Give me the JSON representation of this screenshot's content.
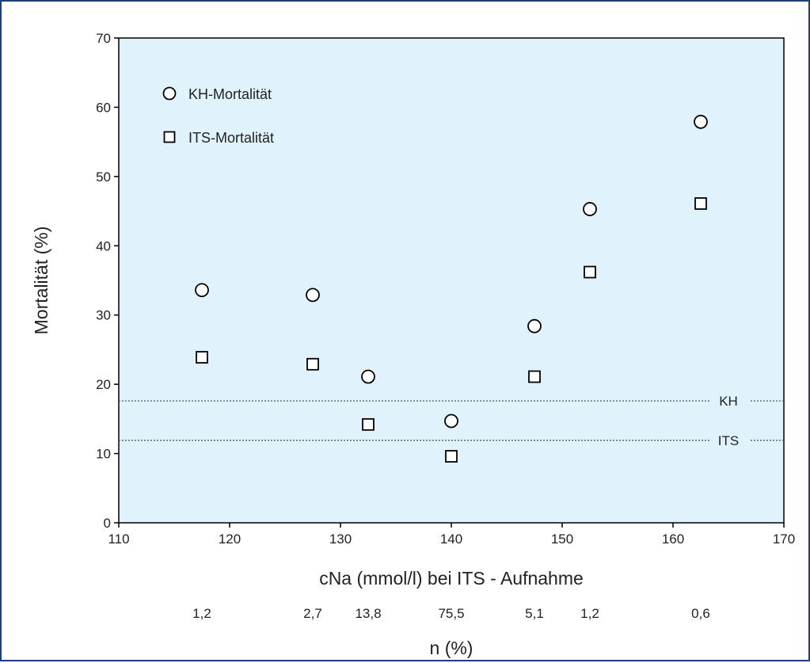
{
  "colors": {
    "plot_background": "#e0f3fc",
    "border": "#1f3f7a",
    "marker": "#000000",
    "reference_line": "#555555"
  },
  "chart_data": {
    "type": "scatter",
    "xlabel": "cNa (mmol/l) bei ITS - Aufnahme",
    "ylabel": "Mortalität (%)",
    "xlim": [
      110,
      170
    ],
    "ylim": [
      0,
      70
    ],
    "x_ticks": [
      "110",
      "120",
      "130",
      "140",
      "150",
      "160",
      "170"
    ],
    "y_ticks": [
      "0",
      "10",
      "20",
      "30",
      "40",
      "50",
      "60",
      "70"
    ],
    "grid": false,
    "legend_position": "top-left",
    "series": [
      {
        "name": "KH-Mortalität",
        "marker": "circle",
        "points": [
          {
            "x": 117.5,
            "y": 33.6
          },
          {
            "x": 127.5,
            "y": 32.9
          },
          {
            "x": 132.5,
            "y": 21.1
          },
          {
            "x": 140,
            "y": 14.7
          },
          {
            "x": 147.5,
            "y": 28.4
          },
          {
            "x": 152.5,
            "y": 45.3
          },
          {
            "x": 162.5,
            "y": 57.9
          }
        ]
      },
      {
        "name": "ITS-Mortalität",
        "marker": "square",
        "points": [
          {
            "x": 117.5,
            "y": 23.9
          },
          {
            "x": 127.5,
            "y": 22.9
          },
          {
            "x": 132.5,
            "y": 14.2
          },
          {
            "x": 140,
            "y": 9.6
          },
          {
            "x": 147.5,
            "y": 21.1
          },
          {
            "x": 152.5,
            "y": 36.2
          },
          {
            "x": 162.5,
            "y": 46.1
          }
        ]
      }
    ],
    "reference_lines": [
      {
        "label": "KH",
        "y": 17.6
      },
      {
        "label": "ITS",
        "y": 11.9
      }
    ],
    "secondary_axis": {
      "label": "n (%)",
      "entries": [
        {
          "x": 117.5,
          "text": "1,2"
        },
        {
          "x": 127.5,
          "text": "2,7"
        },
        {
          "x": 132.5,
          "text": "13,8"
        },
        {
          "x": 140,
          "text": "75,5"
        },
        {
          "x": 147.5,
          "text": "5,1"
        },
        {
          "x": 152.5,
          "text": "1,2"
        },
        {
          "x": 162.5,
          "text": "0,6"
        }
      ]
    }
  }
}
